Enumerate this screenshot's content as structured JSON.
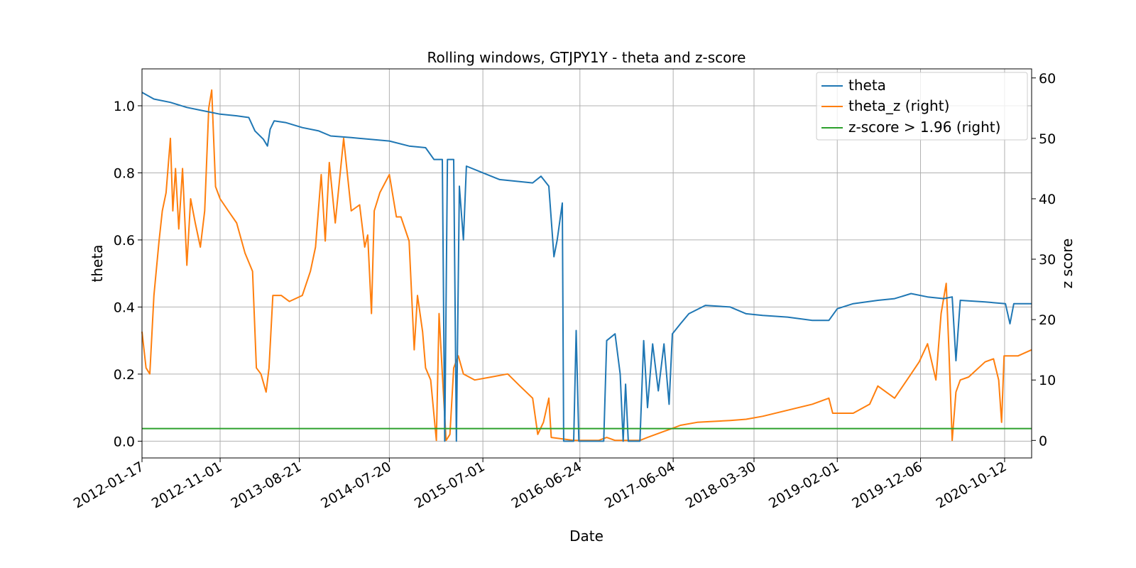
{
  "chart_data": {
    "type": "line",
    "title": "Rolling windows, GTJPY1Y - theta and z-score",
    "xlabel": "Date",
    "ylabel": "theta",
    "y2label": "z score",
    "xlim": [
      "2012-01-17",
      "2021-01-20"
    ],
    "ylim": [
      -0.05,
      1.11
    ],
    "y2lim": [
      -2.9,
      61.5
    ],
    "x_tick_labels": [
      "2012-01-17",
      "2012-11-01",
      "2013-08-21",
      "2014-07-20",
      "2015-07-01",
      "2016-06-24",
      "2017-06-04",
      "2018-03-30",
      "2019-02-01",
      "2019-12-06",
      "2020-10-12"
    ],
    "y_ticks": [
      0.0,
      0.2,
      0.4,
      0.6,
      0.8,
      1.0
    ],
    "y_tick_labels": [
      "0.0",
      "0.2",
      "0.4",
      "0.6",
      "0.8",
      "1.0"
    ],
    "y2_ticks": [
      0,
      10,
      20,
      30,
      40,
      50,
      60
    ],
    "y2_tick_labels": [
      "0",
      "10",
      "20",
      "30",
      "40",
      "50",
      "60"
    ],
    "grid": true,
    "legend_position": "top-right",
    "series": [
      {
        "name": "theta",
        "axis": "left",
        "color": "#1f77b4",
        "points": [
          [
            "2012-01-17",
            1.04
          ],
          [
            "2012-03-01",
            1.02
          ],
          [
            "2012-05-01",
            1.01
          ],
          [
            "2012-07-01",
            0.995
          ],
          [
            "2012-09-01",
            0.985
          ],
          [
            "2012-11-01",
            0.975
          ],
          [
            "2013-01-01",
            0.97
          ],
          [
            "2013-02-15",
            0.965
          ],
          [
            "2013-03-10",
            0.925
          ],
          [
            "2013-04-10",
            0.9
          ],
          [
            "2013-04-25",
            0.88
          ],
          [
            "2013-05-05",
            0.93
          ],
          [
            "2013-05-20",
            0.955
          ],
          [
            "2013-07-01",
            0.95
          ],
          [
            "2013-09-01",
            0.935
          ],
          [
            "2013-11-01",
            0.925
          ],
          [
            "2013-12-15",
            0.91
          ],
          [
            "2014-03-01",
            0.905
          ],
          [
            "2014-07-20",
            0.895
          ],
          [
            "2014-10-01",
            0.88
          ],
          [
            "2014-12-01",
            0.875
          ],
          [
            "2015-01-01",
            0.84
          ],
          [
            "2015-02-01",
            0.84
          ],
          [
            "2015-02-10",
            0.0
          ],
          [
            "2015-02-20",
            0.84
          ],
          [
            "2015-03-15",
            0.84
          ],
          [
            "2015-03-25",
            0.0
          ],
          [
            "2015-04-05",
            0.76
          ],
          [
            "2015-04-20",
            0.6
          ],
          [
            "2015-05-01",
            0.82
          ],
          [
            "2015-07-01",
            0.8
          ],
          [
            "2015-09-01",
            0.78
          ],
          [
            "2015-11-01",
            0.775
          ],
          [
            "2016-01-01",
            0.77
          ],
          [
            "2016-02-01",
            0.79
          ],
          [
            "2016-03-01",
            0.76
          ],
          [
            "2016-03-20",
            0.55
          ],
          [
            "2016-04-01",
            0.6
          ],
          [
            "2016-04-20",
            0.71
          ],
          [
            "2016-04-25",
            0.0
          ],
          [
            "2016-06-01",
            0.0
          ],
          [
            "2016-06-10",
            0.33
          ],
          [
            "2016-06-20",
            0.0
          ],
          [
            "2016-09-20",
            0.0
          ],
          [
            "2016-10-01",
            0.3
          ],
          [
            "2016-11-01",
            0.32
          ],
          [
            "2016-11-20",
            0.2
          ],
          [
            "2016-12-01",
            0.0
          ],
          [
            "2016-12-10",
            0.17
          ],
          [
            "2016-12-20",
            0.0
          ],
          [
            "2017-02-01",
            0.0
          ],
          [
            "2017-02-15",
            0.3
          ],
          [
            "2017-03-01",
            0.1
          ],
          [
            "2017-03-20",
            0.29
          ],
          [
            "2017-04-10",
            0.15
          ],
          [
            "2017-05-01",
            0.29
          ],
          [
            "2017-05-20",
            0.11
          ],
          [
            "2017-06-01",
            0.32
          ],
          [
            "2017-07-01",
            0.35
          ],
          [
            "2017-08-01",
            0.38
          ],
          [
            "2017-10-01",
            0.405
          ],
          [
            "2018-01-01",
            0.4
          ],
          [
            "2018-03-01",
            0.38
          ],
          [
            "2018-05-01",
            0.375
          ],
          [
            "2018-08-01",
            0.37
          ],
          [
            "2018-11-01",
            0.36
          ],
          [
            "2019-01-01",
            0.36
          ],
          [
            "2019-02-01",
            0.395
          ],
          [
            "2019-04-01",
            0.41
          ],
          [
            "2019-07-01",
            0.42
          ],
          [
            "2019-09-01",
            0.425
          ],
          [
            "2019-11-01",
            0.44
          ],
          [
            "2020-01-01",
            0.43
          ],
          [
            "2020-03-01",
            0.425
          ],
          [
            "2020-04-01",
            0.43
          ],
          [
            "2020-04-15",
            0.24
          ],
          [
            "2020-05-01",
            0.42
          ],
          [
            "2020-08-01",
            0.415
          ],
          [
            "2020-10-15",
            0.41
          ],
          [
            "2020-11-01",
            0.35
          ],
          [
            "2020-11-15",
            0.41
          ],
          [
            "2021-01-20",
            0.41
          ]
        ]
      },
      {
        "name": "theta_z (right)",
        "axis": "right",
        "color": "#ff7f0e",
        "points": [
          [
            "2012-01-17",
            18
          ],
          [
            "2012-02-01",
            12
          ],
          [
            "2012-02-15",
            11
          ],
          [
            "2012-03-01",
            24
          ],
          [
            "2012-03-20",
            33
          ],
          [
            "2012-04-01",
            38
          ],
          [
            "2012-04-15",
            41
          ],
          [
            "2012-05-01",
            50
          ],
          [
            "2012-05-10",
            38
          ],
          [
            "2012-05-20",
            45
          ],
          [
            "2012-06-01",
            35
          ],
          [
            "2012-06-15",
            45
          ],
          [
            "2012-07-01",
            29
          ],
          [
            "2012-07-15",
            40
          ],
          [
            "2012-08-01",
            36
          ],
          [
            "2012-08-20",
            32
          ],
          [
            "2012-09-05",
            38
          ],
          [
            "2012-09-20",
            55
          ],
          [
            "2012-10-01",
            58
          ],
          [
            "2012-10-15",
            42
          ],
          [
            "2012-11-01",
            40
          ],
          [
            "2012-12-01",
            38
          ],
          [
            "2013-01-01",
            36
          ],
          [
            "2013-02-01",
            31
          ],
          [
            "2013-03-01",
            28
          ],
          [
            "2013-03-15",
            12
          ],
          [
            "2013-04-01",
            11
          ],
          [
            "2013-04-20",
            8
          ],
          [
            "2013-05-01",
            12
          ],
          [
            "2013-05-15",
            24
          ],
          [
            "2013-06-15",
            24
          ],
          [
            "2013-07-15",
            23
          ],
          [
            "2013-09-01",
            24
          ],
          [
            "2013-10-01",
            28
          ],
          [
            "2013-10-20",
            32
          ],
          [
            "2013-11-10",
            44
          ],
          [
            "2013-11-25",
            33
          ],
          [
            "2013-12-10",
            46
          ],
          [
            "2014-01-01",
            36
          ],
          [
            "2014-02-01",
            50
          ],
          [
            "2014-03-01",
            38
          ],
          [
            "2014-04-01",
            39
          ],
          [
            "2014-04-20",
            32
          ],
          [
            "2014-05-01",
            34
          ],
          [
            "2014-05-15",
            21
          ],
          [
            "2014-05-25",
            38
          ],
          [
            "2014-06-15",
            41
          ],
          [
            "2014-07-20",
            44
          ],
          [
            "2014-08-15",
            37
          ],
          [
            "2014-09-01",
            37
          ],
          [
            "2014-10-01",
            33
          ],
          [
            "2014-10-20",
            15
          ],
          [
            "2014-11-01",
            24
          ],
          [
            "2014-11-20",
            18
          ],
          [
            "2014-12-01",
            12
          ],
          [
            "2014-12-20",
            10
          ],
          [
            "2015-01-10",
            0
          ],
          [
            "2015-01-20",
            21
          ],
          [
            "2015-02-01",
            11
          ],
          [
            "2015-02-15",
            0
          ],
          [
            "2015-03-01",
            1
          ],
          [
            "2015-03-15",
            12
          ],
          [
            "2015-04-01",
            14
          ],
          [
            "2015-04-20",
            11
          ],
          [
            "2015-06-01",
            10
          ],
          [
            "2015-08-01",
            10.5
          ],
          [
            "2015-10-01",
            11
          ],
          [
            "2015-11-15",
            9
          ],
          [
            "2016-01-01",
            7
          ],
          [
            "2016-01-20",
            1
          ],
          [
            "2016-02-10",
            3
          ],
          [
            "2016-03-01",
            7
          ],
          [
            "2016-03-10",
            0.5
          ],
          [
            "2016-06-01",
            0
          ],
          [
            "2016-09-01",
            0
          ],
          [
            "2016-10-01",
            0.5
          ],
          [
            "2016-11-01",
            0
          ],
          [
            "2016-12-01",
            0
          ],
          [
            "2017-02-01",
            0
          ],
          [
            "2017-03-01",
            0.5
          ],
          [
            "2017-05-01",
            1.5
          ],
          [
            "2017-06-01",
            2
          ],
          [
            "2017-07-01",
            2.5
          ],
          [
            "2017-09-01",
            3
          ],
          [
            "2018-01-01",
            3.3
          ],
          [
            "2018-03-01",
            3.5
          ],
          [
            "2018-05-01",
            4
          ],
          [
            "2018-08-01",
            5
          ],
          [
            "2018-11-01",
            6
          ],
          [
            "2019-01-01",
            7
          ],
          [
            "2019-01-15",
            4.5
          ],
          [
            "2019-04-01",
            4.5
          ],
          [
            "2019-06-01",
            6
          ],
          [
            "2019-07-01",
            9
          ],
          [
            "2019-09-01",
            7
          ],
          [
            "2019-11-01",
            11
          ],
          [
            "2019-12-01",
            13
          ],
          [
            "2020-01-01",
            16
          ],
          [
            "2020-02-01",
            10
          ],
          [
            "2020-02-20",
            21
          ],
          [
            "2020-03-10",
            26
          ],
          [
            "2020-03-20",
            15
          ],
          [
            "2020-04-01",
            0
          ],
          [
            "2020-04-15",
            8
          ],
          [
            "2020-05-01",
            10
          ],
          [
            "2020-06-01",
            10.5
          ],
          [
            "2020-08-01",
            13
          ],
          [
            "2020-09-01",
            13.5
          ],
          [
            "2020-09-20",
            10
          ],
          [
            "2020-10-01",
            3
          ],
          [
            "2020-10-10",
            14
          ],
          [
            "2020-12-01",
            14
          ],
          [
            "2021-01-20",
            15
          ]
        ]
      },
      {
        "name": "z-score > 1.96 (right)",
        "axis": "right",
        "color": "#2ca02c",
        "points": [
          [
            "2012-01-17",
            1.96
          ],
          [
            "2021-01-20",
            1.96
          ]
        ]
      }
    ]
  }
}
